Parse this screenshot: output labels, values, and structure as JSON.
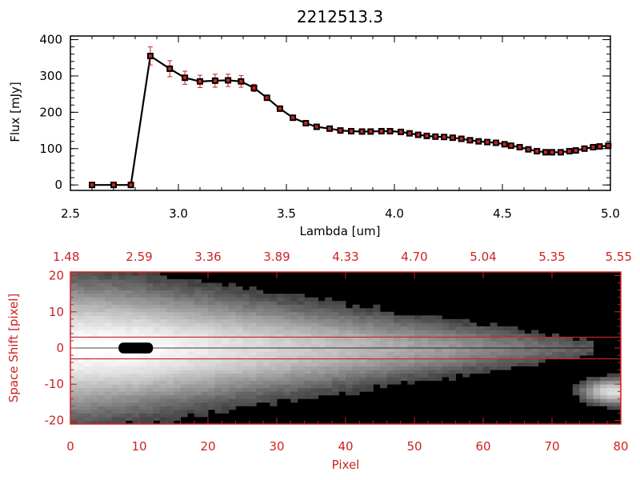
{
  "chart_data": [
    {
      "type": "line",
      "title": "2212513.3",
      "xlabel": "Lambda [um]",
      "ylabel": "Flux [mJy]",
      "xlim": [
        2.5,
        5.0
      ],
      "ylim": [
        -15,
        410
      ],
      "xticks": [
        "2.5",
        "3.0",
        "3.5",
        "4.0",
        "4.5",
        "5.0"
      ],
      "yticks": [
        "0",
        "100",
        "200",
        "300",
        "400"
      ],
      "grid": false,
      "series": [
        {
          "x": [
            2.6,
            2.7,
            2.78,
            2.87,
            2.96,
            3.03,
            3.1,
            3.17,
            3.23,
            3.29,
            3.35,
            3.41,
            3.47,
            3.53,
            3.59,
            3.64,
            3.7,
            3.75,
            3.8,
            3.85,
            3.89,
            3.94,
            3.98,
            4.03,
            4.07,
            4.11,
            4.15,
            4.19,
            4.23,
            4.27,
            4.31,
            4.35,
            4.39,
            4.43,
            4.47,
            4.51,
            4.54,
            4.58,
            4.62,
            4.66,
            4.7,
            4.73,
            4.77,
            4.81,
            4.84,
            4.88,
            4.92,
            4.95,
            4.99
          ],
          "y": [
            0,
            0,
            0,
            355,
            320,
            295,
            285,
            287,
            288,
            285,
            267,
            240,
            210,
            185,
            170,
            160,
            155,
            150,
            148,
            147,
            147,
            148,
            148,
            146,
            142,
            138,
            135,
            133,
            132,
            130,
            127,
            123,
            120,
            118,
            116,
            112,
            108,
            104,
            98,
            93,
            90,
            90,
            90,
            93,
            95,
            100,
            104,
            106,
            108
          ],
          "err": [
            0,
            0,
            0,
            25,
            22,
            18,
            17,
            18,
            17,
            16,
            10,
            7,
            6,
            5,
            5,
            4,
            4,
            4,
            4,
            4,
            4,
            4,
            4,
            4,
            4,
            4,
            4,
            4,
            4,
            4,
            4,
            4,
            4,
            4,
            4,
            4,
            4,
            4,
            4,
            4,
            4,
            4,
            4,
            4,
            4,
            4,
            4,
            4,
            4
          ],
          "color": "#000000",
          "error_color": "#cc2222",
          "marker_fill": "#000000",
          "marker_core": "#cc2222"
        }
      ]
    },
    {
      "type": "heatmap",
      "xlabel": "Pixel",
      "ylabel": "Space Shift [pixel]",
      "xlim": [
        0,
        80
      ],
      "ylim": [
        -21,
        21
      ],
      "xticks": [
        "0",
        "10",
        "20",
        "30",
        "40",
        "50",
        "60",
        "70",
        "80"
      ],
      "yticks": [
        "-20",
        "-10",
        "0",
        "10",
        "20"
      ],
      "top_ticks": [
        "1.48",
        "2.59",
        "3.36",
        "3.89",
        "4.33",
        "4.70",
        "5.04",
        "5.35",
        "5.55"
      ],
      "extraction_band": [
        -3,
        3
      ],
      "saturated_blob": {
        "x": [
          7,
          12
        ],
        "y": [
          -1.5,
          1.5
        ]
      },
      "faint_source": {
        "x": [
          75,
          80
        ],
        "y": [
          -16,
          -8
        ]
      },
      "accent_color": "#cc2222",
      "colormap": "grayscale"
    }
  ]
}
